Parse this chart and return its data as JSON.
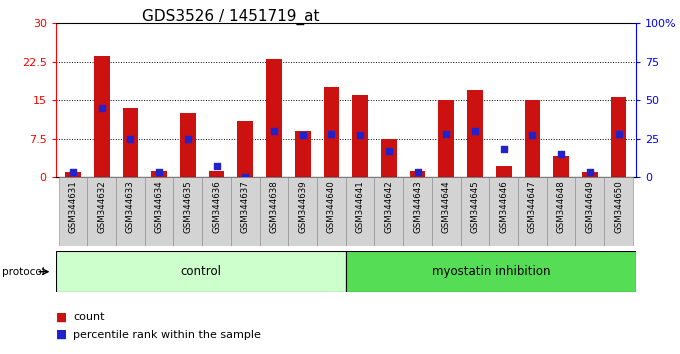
{
  "title": "GDS3526 / 1451719_at",
  "samples": [
    "GSM344631",
    "GSM344632",
    "GSM344633",
    "GSM344634",
    "GSM344635",
    "GSM344636",
    "GSM344637",
    "GSM344638",
    "GSM344639",
    "GSM344640",
    "GSM344641",
    "GSM344642",
    "GSM344643",
    "GSM344644",
    "GSM344645",
    "GSM344646",
    "GSM344647",
    "GSM344648",
    "GSM344649",
    "GSM344650"
  ],
  "red_values": [
    1.0,
    23.5,
    13.5,
    1.2,
    12.5,
    1.2,
    11.0,
    23.0,
    9.0,
    17.5,
    16.0,
    7.5,
    1.2,
    15.0,
    17.0,
    2.2,
    15.0,
    4.0,
    1.0,
    15.5
  ],
  "blue_values_pct": [
    3,
    45,
    25,
    3,
    25,
    7,
    0,
    30,
    27,
    28,
    27,
    17,
    3,
    28,
    30,
    18,
    27,
    15,
    3,
    28
  ],
  "control_count": 10,
  "myostatin_count": 10,
  "left_ylim": [
    0,
    30
  ],
  "right_ylim": [
    0,
    100
  ],
  "left_yticks": [
    0,
    7.5,
    15,
    22.5,
    30
  ],
  "left_yticklabels": [
    "0",
    "7.5",
    "15",
    "22.5",
    "30"
  ],
  "right_yticks": [
    0,
    25,
    50,
    75,
    100
  ],
  "right_yticklabels": [
    "0",
    "25",
    "50",
    "75",
    "100%"
  ],
  "bar_color": "#cc1111",
  "dot_color": "#2222cc",
  "control_bg": "#ccffcc",
  "myostatin_bg": "#55dd55",
  "protocol_label": "protocol",
  "control_label": "control",
  "myostatin_label": "myostatin inhibition",
  "legend_count": "count",
  "legend_pct": "percentile rank within the sample",
  "plot_bg": "#ffffff",
  "tick_bg": "#d3d3d3",
  "title_fontsize": 11,
  "bar_width": 0.55
}
